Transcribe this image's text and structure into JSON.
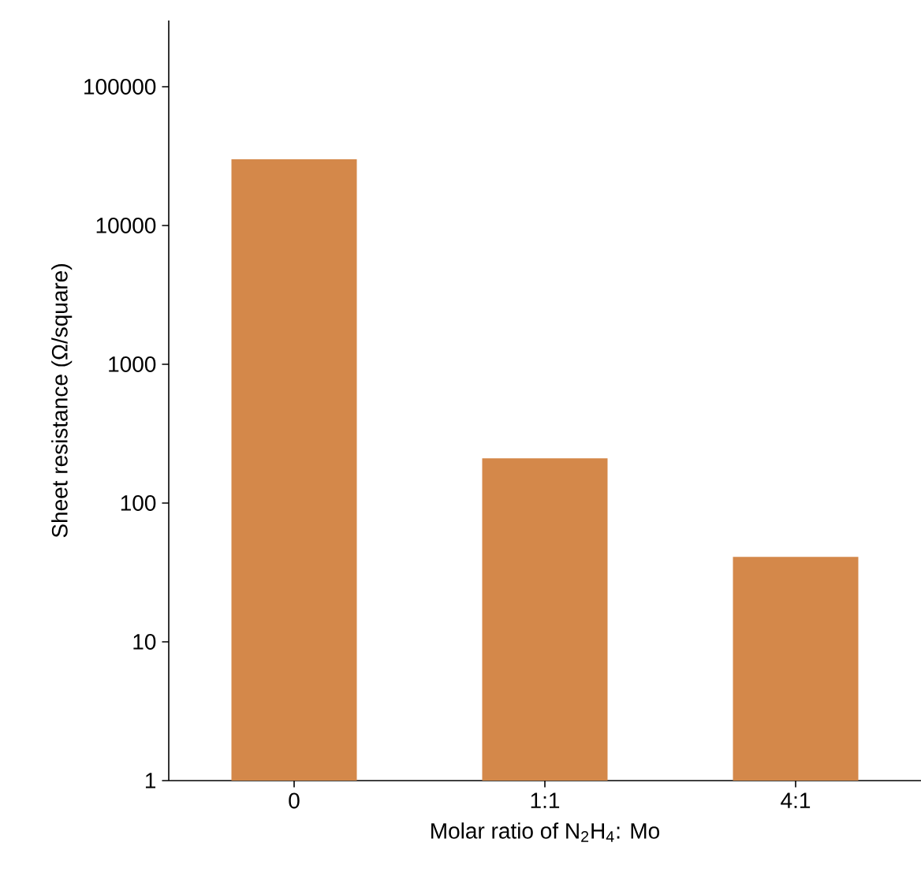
{
  "chart_data": {
    "type": "bar",
    "xlabel": "Molar ratio of N$_{2}$H$_{4}$: Mo",
    "ylabel": "Sheet resistance (Ω/square)",
    "categories": [
      "0",
      "1:1",
      "4:1"
    ],
    "values": [
      30000,
      210,
      41
    ],
    "color": "#d4884a",
    "log": true,
    "ylim": [
      1,
      300000
    ],
    "yticks": [
      1,
      10,
      100,
      1000,
      10000,
      100000
    ],
    "grid": false
  }
}
